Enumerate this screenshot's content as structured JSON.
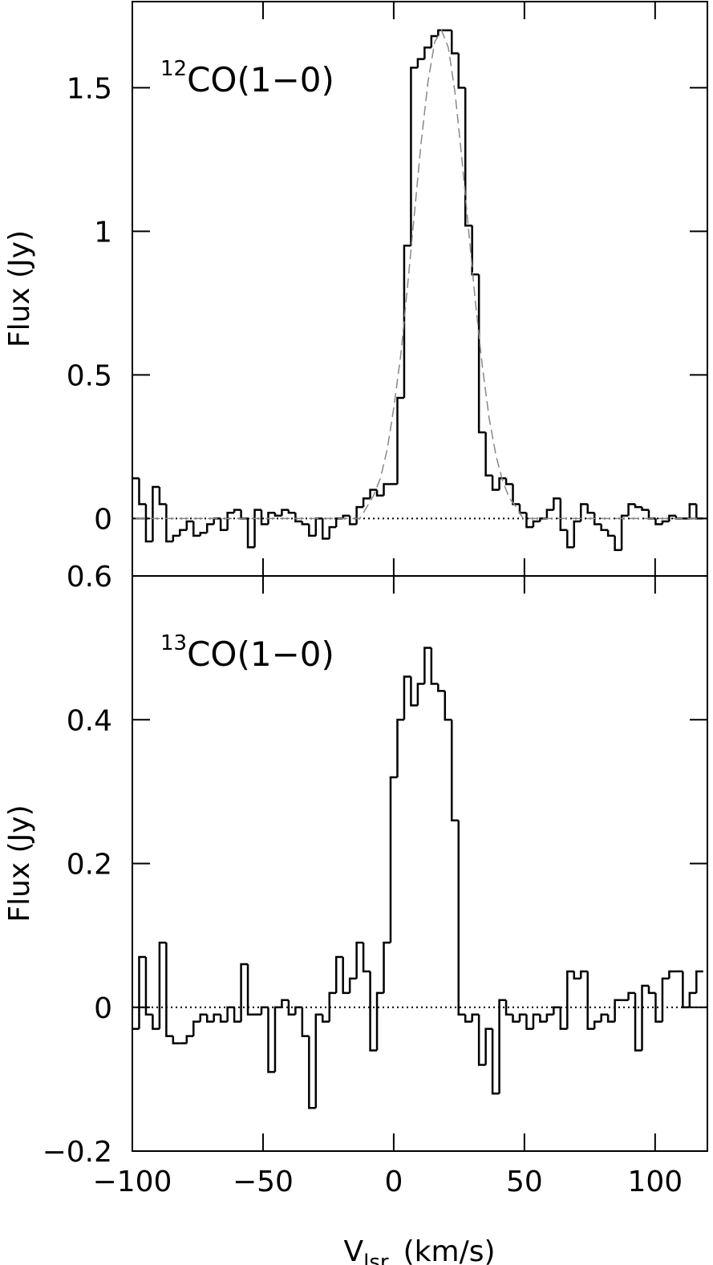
{
  "chart_data": [
    {
      "type": "step",
      "annotation_sup": "12",
      "annotation": "CO(1−0)",
      "ylabel": "Flux (Jy)",
      "x": [
        -98.7,
        -96.1,
        -93.5,
        -90.9,
        -88.3,
        -85.7,
        -83.1,
        -80.5,
        -77.9,
        -75.3,
        -72.7,
        -70.1,
        -67.5,
        -64.9,
        -62.3,
        -59.7,
        -57.1,
        -54.5,
        -51.9,
        -49.3,
        -46.7,
        -44.1,
        -41.5,
        -38.9,
        -36.3,
        -33.7,
        -31.1,
        -28.5,
        -25.9,
        -23.3,
        -20.7,
        -18.1,
        -15.5,
        -12.9,
        -10.3,
        -7.7,
        -5.1,
        -2.5,
        0.1,
        2.7,
        5.3,
        7.9,
        10.5,
        13.1,
        15.7,
        18.3,
        20.9,
        23.5,
        26.1,
        28.7,
        31.3,
        33.9,
        36.5,
        39.1,
        41.7,
        44.3,
        46.9,
        49.5,
        52.1,
        54.7,
        57.3,
        59.9,
        62.5,
        65.1,
        67.7,
        70.3,
        72.9,
        75.5,
        78.1,
        80.7,
        83.3,
        85.9,
        88.5,
        91.1,
        93.7,
        96.3,
        98.9,
        101.5,
        104.1,
        106.7,
        109.3,
        111.9,
        114.5,
        117.1
      ],
      "series": [
        {
          "color": "#000000",
          "dash": false,
          "values": [
            0.14,
            0.05,
            -0.08,
            0.11,
            0.05,
            -0.08,
            -0.06,
            -0.04,
            -0.01,
            -0.06,
            -0.05,
            -0.02,
            0.0,
            -0.04,
            0.02,
            0.03,
            0.0,
            -0.1,
            0.03,
            -0.02,
            0.02,
            0.01,
            0.03,
            0.02,
            -0.01,
            -0.02,
            -0.06,
            0.0,
            -0.07,
            -0.03,
            0.0,
            0.01,
            -0.02,
            0.04,
            0.07,
            0.1,
            0.08,
            0.12,
            0.12,
            0.42,
            0.95,
            1.57,
            1.6,
            1.64,
            1.68,
            1.7,
            1.7,
            1.62,
            1.5,
            1.02,
            0.85,
            0.3,
            0.15,
            0.1,
            0.14,
            0.12,
            0.05,
            0.02,
            -0.03,
            -0.01,
            0.0,
            0.03,
            0.07,
            -0.04,
            -0.1,
            -0.01,
            0.05,
            0.02,
            -0.02,
            -0.04,
            -0.06,
            -0.11,
            0.01,
            0.05,
            0.04,
            0.03,
            0.0,
            -0.02,
            -0.01,
            0.01,
            0.0,
            0.0,
            0.05,
            0.0
          ]
        },
        {
          "color": "#888888",
          "dash": true,
          "values": [
            0,
            0,
            0,
            0,
            0,
            0,
            0,
            0,
            0,
            0,
            0,
            0,
            0,
            0,
            0,
            0,
            0,
            0,
            0,
            0,
            0,
            0,
            0,
            0,
            0,
            0,
            0,
            0,
            0,
            0,
            0,
            0,
            0,
            0,
            0.04,
            0.08,
            0.14,
            0.24,
            0.39,
            0.57,
            0.81,
            1.06,
            1.31,
            1.52,
            1.66,
            1.7,
            1.64,
            1.48,
            1.25,
            1.0,
            0.75,
            0.53,
            0.35,
            0.22,
            0.13,
            0.07,
            0.04,
            0,
            0,
            0,
            0,
            0,
            0,
            0,
            0,
            0,
            0,
            0,
            0,
            0,
            0,
            0,
            0,
            0,
            0,
            0,
            0,
            0,
            0,
            0,
            0,
            0,
            0,
            0
          ]
        }
      ],
      "xlim": [
        -100,
        120
      ],
      "xticks": [
        -100,
        -50,
        0,
        50,
        100
      ],
      "ylim": [
        -0.2,
        1.8
      ],
      "yticks": [
        0,
        0.5,
        1,
        1.5
      ],
      "zero_line": true
    },
    {
      "type": "step",
      "annotation_sup": "13",
      "annotation": "CO(1−0)",
      "ylabel": "Flux (Jy)",
      "xlabel": "V",
      "xlabel_sub": "lsr",
      "xlabel_unit": "(km/s)",
      "x": [
        -98.7,
        -96.1,
        -93.5,
        -90.9,
        -88.3,
        -85.7,
        -83.1,
        -80.5,
        -77.9,
        -75.3,
        -72.7,
        -70.1,
        -67.5,
        -64.9,
        -62.3,
        -59.7,
        -57.1,
        -54.5,
        -51.9,
        -49.3,
        -46.7,
        -44.1,
        -41.5,
        -38.9,
        -36.3,
        -33.7,
        -31.1,
        -28.5,
        -25.9,
        -23.3,
        -20.7,
        -18.1,
        -15.5,
        -12.9,
        -10.3,
        -7.7,
        -5.1,
        -2.5,
        0.1,
        2.7,
        5.3,
        7.9,
        10.5,
        13.1,
        15.7,
        18.3,
        20.9,
        23.5,
        26.1,
        28.7,
        31.3,
        33.9,
        36.5,
        39.1,
        41.7,
        44.3,
        46.9,
        49.5,
        52.1,
        54.7,
        57.3,
        59.9,
        62.5,
        65.1,
        67.7,
        70.3,
        72.9,
        75.5,
        78.1,
        80.7,
        83.3,
        85.9,
        88.5,
        91.1,
        93.7,
        96.3,
        98.9,
        101.5,
        104.1,
        106.7,
        109.3,
        111.9,
        114.5,
        117.1
      ],
      "series": [
        {
          "color": "#000000",
          "dash": false,
          "values": [
            -0.03,
            0.07,
            -0.01,
            -0.03,
            0.09,
            -0.04,
            -0.05,
            -0.05,
            -0.04,
            -0.02,
            -0.01,
            -0.02,
            -0.01,
            -0.02,
            0.0,
            -0.02,
            0.06,
            -0.01,
            -0.01,
            0.0,
            -0.09,
            0.0,
            0.01,
            -0.01,
            0.0,
            -0.04,
            -0.14,
            -0.01,
            -0.02,
            0.02,
            0.07,
            0.02,
            0.04,
            0.09,
            0.05,
            -0.06,
            0.02,
            0.09,
            0.32,
            0.4,
            0.46,
            0.42,
            0.45,
            0.5,
            0.45,
            0.44,
            0.4,
            0.26,
            -0.01,
            -0.02,
            -0.01,
            -0.08,
            -0.03,
            -0.12,
            0.01,
            -0.01,
            -0.02,
            -0.01,
            -0.03,
            -0.01,
            -0.02,
            -0.01,
            0.0,
            -0.03,
            0.05,
            0.04,
            0.05,
            -0.03,
            -0.02,
            -0.01,
            -0.02,
            0.01,
            0.01,
            0.02,
            -0.06,
            0.03,
            0.02,
            -0.02,
            0.04,
            0.05,
            0.05,
            0.0,
            0.02,
            0.05
          ]
        }
      ],
      "xlim": [
        -100,
        120
      ],
      "xticks": [
        {
          "value": -100,
          "label": "−100"
        },
        {
          "value": -50,
          "label": "−50"
        },
        0,
        50,
        100
      ],
      "ylim": [
        -0.2,
        0.6
      ],
      "yticks": [
        {
          "value": -0.2,
          "label": "−0.2"
        },
        0,
        0.2,
        0.4,
        0.6
      ],
      "zero_line": true
    }
  ]
}
